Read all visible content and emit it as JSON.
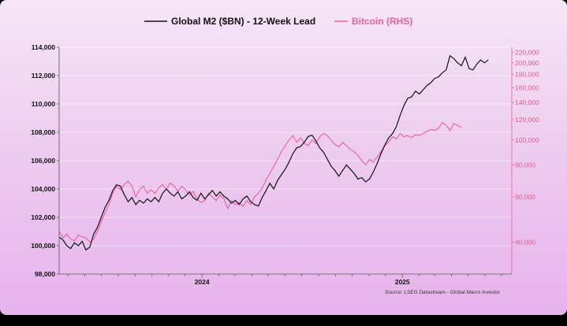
{
  "chart_data": {
    "type": "line",
    "legend": [
      {
        "label": "Global M2 ($BN) - 12-Week Lead",
        "color": "#111111"
      },
      {
        "label": "Bitcoin (RHS)",
        "color": "#e8609a"
      }
    ],
    "legend_position": "top-center",
    "grid": true,
    "left_axis": {
      "ylim": [
        98000,
        114000
      ],
      "ticks": [
        98000,
        100000,
        102000,
        104000,
        106000,
        108000,
        110000,
        112000,
        114000
      ],
      "tick_labels": [
        "98,000",
        "100,000",
        "102,000",
        "104,000",
        "106,000",
        "108,000",
        "110,000",
        "112,000",
        "114,000"
      ]
    },
    "right_axis": {
      "scale": "log",
      "ylim": [
        30000,
        230000
      ],
      "ticks": [
        40000,
        60000,
        80000,
        100000,
        120000,
        140000,
        160000,
        180000,
        200000,
        220000
      ],
      "tick_labels": [
        "40,000",
        "60,000",
        "80,000",
        "100,000",
        "120,000",
        "140,000",
        "160,000",
        "180,000",
        "200,000",
        "220,000"
      ]
    },
    "x_axis": {
      "range": [
        "2023-04-15",
        "2025-07-20"
      ],
      "tick_labels": [
        {
          "label": "2024",
          "date": "2024-01-01"
        },
        {
          "label": "2025",
          "date": "2025-01-01"
        }
      ]
    },
    "series": [
      {
        "name": "Global M2 ($BN) - 12-Week Lead",
        "axis": "left",
        "color": "#111111",
        "points": [
          [
            "2023-04-15",
            100600
          ],
          [
            "2023-04-22",
            100400
          ],
          [
            "2023-04-29",
            100000
          ],
          [
            "2023-05-06",
            99800
          ],
          [
            "2023-05-13",
            100200
          ],
          [
            "2023-05-20",
            100000
          ],
          [
            "2023-05-27",
            100300
          ],
          [
            "2023-06-03",
            99700
          ],
          [
            "2023-06-10",
            99900
          ],
          [
            "2023-06-17",
            100800
          ],
          [
            "2023-06-24",
            101300
          ],
          [
            "2023-07-01",
            102000
          ],
          [
            "2023-07-08",
            102700
          ],
          [
            "2023-07-15",
            103200
          ],
          [
            "2023-07-22",
            103900
          ],
          [
            "2023-07-29",
            104300
          ],
          [
            "2023-08-05",
            104200
          ],
          [
            "2023-08-12",
            103600
          ],
          [
            "2023-08-19",
            103100
          ],
          [
            "2023-08-26",
            103400
          ],
          [
            "2023-09-02",
            102900
          ],
          [
            "2023-09-09",
            103200
          ],
          [
            "2023-09-16",
            103000
          ],
          [
            "2023-09-23",
            103300
          ],
          [
            "2023-09-30",
            103100
          ],
          [
            "2023-10-07",
            103400
          ],
          [
            "2023-10-14",
            103100
          ],
          [
            "2023-10-21",
            103700
          ],
          [
            "2023-10-28",
            104000
          ],
          [
            "2023-11-04",
            103700
          ],
          [
            "2023-11-11",
            103500
          ],
          [
            "2023-11-18",
            103800
          ],
          [
            "2023-11-25",
            103300
          ],
          [
            "2023-12-02",
            103500
          ],
          [
            "2023-12-09",
            103800
          ],
          [
            "2023-12-16",
            103400
          ],
          [
            "2023-12-23",
            103200
          ],
          [
            "2023-12-30",
            103700
          ],
          [
            "2024-01-06",
            103300
          ],
          [
            "2024-01-13",
            103600
          ],
          [
            "2024-01-20",
            103900
          ],
          [
            "2024-01-27",
            103500
          ],
          [
            "2024-02-03",
            103800
          ],
          [
            "2024-02-10",
            103500
          ],
          [
            "2024-02-17",
            103300
          ],
          [
            "2024-02-24",
            103000
          ],
          [
            "2024-03-02",
            103200
          ],
          [
            "2024-03-09",
            102900
          ],
          [
            "2024-03-16",
            103300
          ],
          [
            "2024-03-23",
            103500
          ],
          [
            "2024-03-30",
            103100
          ],
          [
            "2024-04-06",
            102900
          ],
          [
            "2024-04-13",
            102800
          ],
          [
            "2024-04-20",
            103400
          ],
          [
            "2024-04-27",
            103900
          ],
          [
            "2024-05-04",
            104400
          ],
          [
            "2024-05-11",
            104000
          ],
          [
            "2024-05-18",
            104600
          ],
          [
            "2024-05-25",
            105000
          ],
          [
            "2024-06-01",
            105400
          ],
          [
            "2024-06-08",
            105900
          ],
          [
            "2024-06-15",
            106500
          ],
          [
            "2024-06-22",
            106900
          ],
          [
            "2024-06-29",
            107000
          ],
          [
            "2024-07-06",
            107300
          ],
          [
            "2024-07-13",
            107700
          ],
          [
            "2024-07-20",
            107800
          ],
          [
            "2024-07-27",
            107400
          ],
          [
            "2024-08-03",
            106900
          ],
          [
            "2024-08-10",
            106600
          ],
          [
            "2024-08-17",
            106100
          ],
          [
            "2024-08-24",
            105600
          ],
          [
            "2024-08-31",
            105300
          ],
          [
            "2024-09-07",
            104900
          ],
          [
            "2024-09-14",
            105300
          ],
          [
            "2024-09-21",
            105700
          ],
          [
            "2024-09-28",
            105400
          ],
          [
            "2024-10-05",
            105100
          ],
          [
            "2024-10-12",
            104700
          ],
          [
            "2024-10-19",
            104800
          ],
          [
            "2024-10-26",
            104500
          ],
          [
            "2024-11-02",
            104700
          ],
          [
            "2024-11-09",
            105200
          ],
          [
            "2024-11-16",
            105800
          ],
          [
            "2024-11-23",
            106500
          ],
          [
            "2024-11-30",
            107100
          ],
          [
            "2024-12-07",
            107600
          ],
          [
            "2024-12-14",
            107900
          ],
          [
            "2024-12-21",
            108400
          ],
          [
            "2024-12-28",
            109200
          ],
          [
            "2025-01-04",
            109900
          ],
          [
            "2025-01-11",
            110400
          ],
          [
            "2025-01-18",
            110500
          ],
          [
            "2025-01-25",
            110900
          ],
          [
            "2025-02-01",
            110700
          ],
          [
            "2025-02-08",
            111000
          ],
          [
            "2025-02-15",
            111300
          ],
          [
            "2025-02-22",
            111500
          ],
          [
            "2025-03-01",
            111800
          ],
          [
            "2025-03-08",
            111900
          ],
          [
            "2025-03-15",
            112200
          ],
          [
            "2025-03-22",
            112400
          ],
          [
            "2025-03-29",
            113400
          ],
          [
            "2025-04-05",
            113200
          ],
          [
            "2025-04-12",
            112900
          ],
          [
            "2025-04-19",
            112700
          ],
          [
            "2025-04-26",
            113300
          ],
          [
            "2025-05-03",
            112500
          ],
          [
            "2025-05-10",
            112400
          ],
          [
            "2025-05-17",
            112800
          ],
          [
            "2025-05-24",
            113100
          ],
          [
            "2025-05-31",
            112900
          ],
          [
            "2025-06-07",
            113100
          ]
        ]
      },
      {
        "name": "Bitcoin (RHS)",
        "axis": "right",
        "color": "#e8609a",
        "points": [
          [
            "2023-04-15",
            44000
          ],
          [
            "2023-04-22",
            41500
          ],
          [
            "2023-04-29",
            43000
          ],
          [
            "2023-05-06",
            41000
          ],
          [
            "2023-05-13",
            40500
          ],
          [
            "2023-05-20",
            42500
          ],
          [
            "2023-05-27",
            42000
          ],
          [
            "2023-06-03",
            41500
          ],
          [
            "2023-06-10",
            40000
          ],
          [
            "2023-06-17",
            41000
          ],
          [
            "2023-06-24",
            44000
          ],
          [
            "2023-07-01",
            48000
          ],
          [
            "2023-07-08",
            52000
          ],
          [
            "2023-07-15",
            56000
          ],
          [
            "2023-07-22",
            62000
          ],
          [
            "2023-07-29",
            66000
          ],
          [
            "2023-08-05",
            64000
          ],
          [
            "2023-08-12",
            67000
          ],
          [
            "2023-08-19",
            69000
          ],
          [
            "2023-08-26",
            66000
          ],
          [
            "2023-09-02",
            60000
          ],
          [
            "2023-09-09",
            64000
          ],
          [
            "2023-09-16",
            66000
          ],
          [
            "2023-09-23",
            62000
          ],
          [
            "2023-09-30",
            64000
          ],
          [
            "2023-10-07",
            62000
          ],
          [
            "2023-10-14",
            65000
          ],
          [
            "2023-10-21",
            67000
          ],
          [
            "2023-10-28",
            64000
          ],
          [
            "2023-11-04",
            68000
          ],
          [
            "2023-11-11",
            66000
          ],
          [
            "2023-11-18",
            63000
          ],
          [
            "2023-11-25",
            66000
          ],
          [
            "2023-12-02",
            64000
          ],
          [
            "2023-12-09",
            61000
          ],
          [
            "2023-12-16",
            63000
          ],
          [
            "2023-12-23",
            59000
          ],
          [
            "2023-12-30",
            57000
          ],
          [
            "2024-01-06",
            58000
          ],
          [
            "2024-01-13",
            62000
          ],
          [
            "2024-01-20",
            60000
          ],
          [
            "2024-01-27",
            58000
          ],
          [
            "2024-02-03",
            61000
          ],
          [
            "2024-02-10",
            59000
          ],
          [
            "2024-02-17",
            54000
          ],
          [
            "2024-02-24",
            58000
          ],
          [
            "2024-03-02",
            56000
          ],
          [
            "2024-03-09",
            57000
          ],
          [
            "2024-03-16",
            55000
          ],
          [
            "2024-03-23",
            58000
          ],
          [
            "2024-03-30",
            56000
          ],
          [
            "2024-04-06",
            60000
          ],
          [
            "2024-04-13",
            62000
          ],
          [
            "2024-04-20",
            65000
          ],
          [
            "2024-04-27",
            70000
          ],
          [
            "2024-05-04",
            74000
          ],
          [
            "2024-05-11",
            79000
          ],
          [
            "2024-05-18",
            84000
          ],
          [
            "2024-05-25",
            90000
          ],
          [
            "2024-06-01",
            95000
          ],
          [
            "2024-06-08",
            100000
          ],
          [
            "2024-06-15",
            104000
          ],
          [
            "2024-06-22",
            98000
          ],
          [
            "2024-06-29",
            102000
          ],
          [
            "2024-07-06",
            97000
          ],
          [
            "2024-07-13",
            95000
          ],
          [
            "2024-07-20",
            100000
          ],
          [
            "2024-07-27",
            97000
          ],
          [
            "2024-08-03",
            103000
          ],
          [
            "2024-08-10",
            106000
          ],
          [
            "2024-08-17",
            104000
          ],
          [
            "2024-08-24",
            100000
          ],
          [
            "2024-08-31",
            96000
          ],
          [
            "2024-09-07",
            94000
          ],
          [
            "2024-09-14",
            98000
          ],
          [
            "2024-09-21",
            95000
          ],
          [
            "2024-09-28",
            92000
          ],
          [
            "2024-10-05",
            90000
          ],
          [
            "2024-10-12",
            87000
          ],
          [
            "2024-10-19",
            83000
          ],
          [
            "2024-10-26",
            80000
          ],
          [
            "2024-11-02",
            84000
          ],
          [
            "2024-11-09",
            82000
          ],
          [
            "2024-11-16",
            86000
          ],
          [
            "2024-11-23",
            90000
          ],
          [
            "2024-11-30",
            95000
          ],
          [
            "2024-12-07",
            98000
          ],
          [
            "2024-12-14",
            103000
          ],
          [
            "2024-12-21",
            101000
          ],
          [
            "2024-12-28",
            106000
          ],
          [
            "2025-01-04",
            103000
          ],
          [
            "2025-01-11",
            104000
          ],
          [
            "2025-01-18",
            102000
          ],
          [
            "2025-01-25",
            105000
          ],
          [
            "2025-02-01",
            104000
          ],
          [
            "2025-02-08",
            106000
          ],
          [
            "2025-02-15",
            108000
          ],
          [
            "2025-02-22",
            110000
          ],
          [
            "2025-03-01",
            109000
          ],
          [
            "2025-03-08",
            111000
          ],
          [
            "2025-03-15",
            117000
          ],
          [
            "2025-03-22",
            114000
          ],
          [
            "2025-03-29",
            109000
          ],
          [
            "2025-04-05",
            116000
          ],
          [
            "2025-04-12",
            114000
          ],
          [
            "2025-04-19",
            112000
          ]
        ]
      }
    ],
    "source_note": "Source: LSEG Datastream - Global Macro Investor"
  }
}
